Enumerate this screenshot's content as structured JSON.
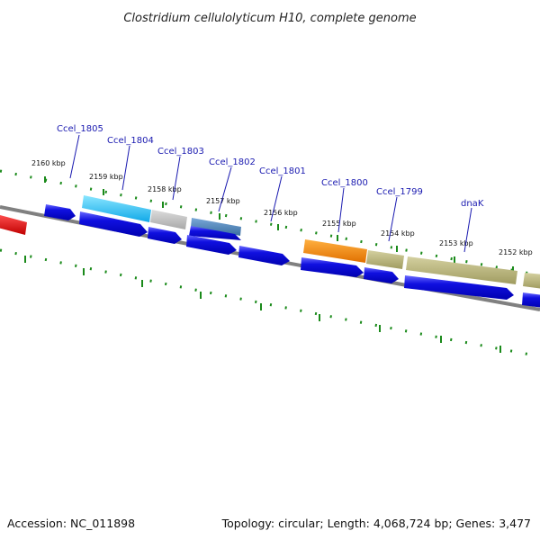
{
  "title": "Clostridium cellulolyticum H10, complete genome",
  "accession": "Accession: NC_011898",
  "summary": "Topology: circular; Length: 4,068,724 bp; Genes: 3,477",
  "scale_labels": [
    "2160 kbp",
    "2159 kbp",
    "2158 kbp",
    "2157 kbp",
    "2156 kbp",
    "2155 kbp",
    "2154 kbp",
    "2153 kbp",
    "2152 kbp"
  ],
  "gene_labels": [
    "Ccel_1805",
    "Ccel_1804",
    "Ccel_1803",
    "Ccel_1802",
    "Ccel_1801",
    "Ccel_1800",
    "Ccel_1799",
    "dnaK"
  ],
  "colors": {
    "cds": "#1010e0",
    "backbone": "#808080",
    "ticks": "#1a8a1a",
    "label": "#1a1ab0",
    "highlight_red": "#e01010",
    "highlight_cyan": "#20b8f0",
    "highlight_gray": "#b8b8b8",
    "highlight_steel": "#4a80b0",
    "highlight_orange": "#f08000",
    "highlight_olive": "#b0ac70"
  }
}
